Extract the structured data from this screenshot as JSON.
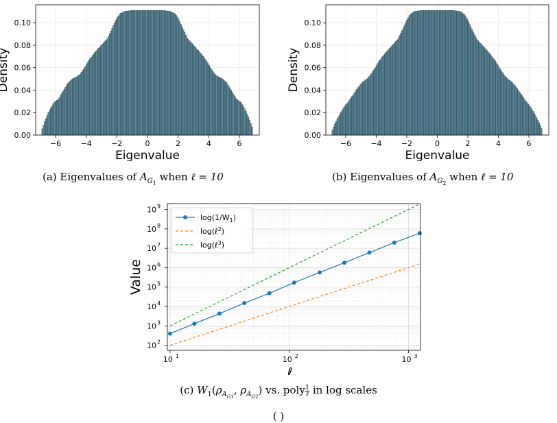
{
  "captions": {
    "a_prefix": "(a)  Eigenvalues of ",
    "a_suffix": " when ",
    "a_ell": "ℓ = 10",
    "b_prefix": "(b)  Eigenvalues of ",
    "b_suffix": " when ",
    "b_ell": "ℓ = 10",
    "c_prefix": "(c)  ",
    "c_mid": " vs. poly",
    "c_suffix": " in log scales",
    "bottom": "(        )"
  },
  "colors": {
    "bars": "#5e8ea0",
    "bar_edge": "#2b3f48",
    "series1": "#1f77b4",
    "series2": "#ff7f0e",
    "series3": "#2ca02c"
  },
  "chart_data": [
    {
      "type": "bar",
      "title": "",
      "xlabel": "Eigenvalue",
      "ylabel": "Density",
      "xlim": [
        -7.3,
        7.3
      ],
      "ylim": [
        0,
        0.116
      ],
      "xticks": [
        -6,
        -4,
        -2,
        0,
        2,
        4,
        6
      ],
      "yticks": [
        0.0,
        0.02,
        0.04,
        0.06,
        0.08,
        0.1
      ],
      "ytick_labels": [
        "0.00",
        "0.02",
        "0.04",
        "0.06",
        "0.08",
        "0.10"
      ],
      "grid": true,
      "support": [
        -6.9,
        6.9
      ],
      "bin_width": 0.08,
      "profile_x": [
        0.0,
        1.0,
        1.5,
        1.8,
        2.0,
        2.3,
        2.6,
        3.0,
        3.4,
        3.8,
        4.1,
        4.4,
        4.6,
        4.9,
        5.2,
        5.5,
        5.8,
        6.1,
        6.4,
        6.7,
        6.9
      ],
      "profile_y": [
        0.111,
        0.111,
        0.11,
        0.108,
        0.104,
        0.095,
        0.086,
        0.08,
        0.074,
        0.067,
        0.06,
        0.054,
        0.052,
        0.05,
        0.046,
        0.039,
        0.032,
        0.029,
        0.022,
        0.012,
        0.004
      ]
    },
    {
      "type": "bar",
      "title": "",
      "xlabel": "Eigenvalue",
      "ylabel": "Density",
      "xlim": [
        -7.3,
        7.3
      ],
      "ylim": [
        0,
        0.116
      ],
      "xticks": [
        -6,
        -4,
        -2,
        0,
        2,
        4,
        6
      ],
      "yticks": [
        0.0,
        0.02,
        0.04,
        0.06,
        0.08,
        0.1
      ],
      "ytick_labels": [
        "0.00",
        "0.02",
        "0.04",
        "0.06",
        "0.08",
        "0.10"
      ],
      "grid": true,
      "support": [
        -6.9,
        6.9
      ],
      "bin_width": 0.08,
      "profile_x": [
        0.0,
        1.0,
        1.5,
        1.8,
        2.0,
        2.3,
        2.6,
        3.0,
        3.4,
        3.8,
        4.1,
        4.4,
        4.6,
        4.9,
        5.2,
        5.5,
        5.8,
        6.1,
        6.4,
        6.7,
        6.9
      ],
      "profile_y": [
        0.111,
        0.111,
        0.11,
        0.107,
        0.102,
        0.093,
        0.085,
        0.079,
        0.073,
        0.066,
        0.059,
        0.053,
        0.05,
        0.047,
        0.042,
        0.036,
        0.03,
        0.025,
        0.018,
        0.01,
        0.003
      ]
    },
    {
      "type": "line",
      "title": "",
      "xlabel": "ℓ",
      "ylabel": "Value",
      "xscale": "log",
      "yscale": "log",
      "xlim": [
        9.5,
        1260
      ],
      "ylim": [
        55,
        2000000000
      ],
      "xticks": [
        10,
        100,
        1000
      ],
      "xtick_labels": [
        "10",
        "10",
        "10"
      ],
      "xtick_exps": [
        "1",
        "2",
        "3"
      ],
      "yticks": [
        100,
        1000,
        10000,
        100000,
        1000000,
        10000000,
        100000000,
        1000000000
      ],
      "ytick_exps": [
        "2",
        "3",
        "4",
        "5",
        "6",
        "7",
        "8",
        "9"
      ],
      "grid": true,
      "legend": "top-left",
      "series": [
        {
          "name": "log(1/W",
          "name_sub": "1",
          "name_end": ")",
          "style": "solid-marker",
          "x": [
            10,
            16,
            26,
            42,
            68,
            110,
            180,
            290,
            470,
            760,
            1240
          ],
          "y": [
            400,
            1300,
            4300,
            15000,
            48000,
            170000,
            570000,
            1800000,
            6000000,
            19500000,
            60000000
          ]
        },
        {
          "name": "log(ℓ",
          "name_sup": "2",
          "name_end": ")",
          "style": "dashed",
          "x": [
            10,
            1240
          ],
          "y": [
            100,
            1537600
          ]
        },
        {
          "name": "log(ℓ",
          "name_sup": "3",
          "name_end": ")",
          "style": "dashed",
          "x": [
            10,
            1240
          ],
          "y": [
            1000,
            1906624000
          ]
        }
      ]
    }
  ]
}
